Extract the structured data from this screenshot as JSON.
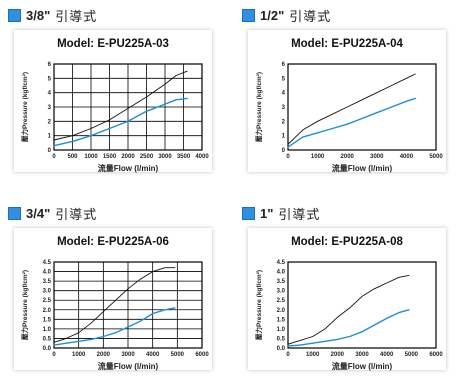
{
  "colors": {
    "accent": "#2f8fe0",
    "grid": "#000000",
    "upper_curve": "#111111",
    "lower_curve": "#1e8fdc"
  },
  "charts": [
    {
      "size_label": "3/8\"",
      "size_suffix": "引導式",
      "model": "Model: E-PU225A-03",
      "ylabel": "壓力Pressure (kgf/cm²)",
      "xlabel": "流量Flow (l/min)",
      "chart_data": {
        "type": "line",
        "xlim": [
          0,
          4000
        ],
        "ylim": [
          0,
          6
        ],
        "x_ticks": [
          0,
          500,
          1000,
          1500,
          2000,
          2500,
          3000,
          3500,
          4000
        ],
        "y_ticks": [
          0,
          1,
          2,
          3,
          4,
          5,
          6
        ],
        "grid": true,
        "series": [
          {
            "x": [
              0,
              500,
              1000,
              1500,
              2000,
              2500,
              3000,
              3300,
              3600
            ],
            "y": [
              0.7,
              1.0,
              1.5,
              2.1,
              2.9,
              3.7,
              4.6,
              5.2,
              5.5
            ]
          },
          {
            "x": [
              0,
              500,
              1000,
              1500,
              2000,
              2500,
              3000,
              3300,
              3600
            ],
            "y": [
              0.3,
              0.6,
              1.0,
              1.5,
              2.0,
              2.7,
              3.2,
              3.5,
              3.6
            ]
          }
        ]
      }
    },
    {
      "size_label": "1/2\"",
      "size_suffix": "引導式",
      "model": "Model: E-PU225A-04",
      "ylabel": "壓力Pressure (kgf/cm²)",
      "xlabel": "流量Flow (l/min)",
      "chart_data": {
        "type": "line",
        "xlim": [
          0,
          5000
        ],
        "ylim": [
          0,
          6
        ],
        "x_ticks": [
          0,
          1000,
          2000,
          3000,
          4000,
          5000
        ],
        "x_tick_labels": [
          "0",
          "1000",
          "2000",
          "3000",
          "4000",
          "5000"
        ],
        "y_ticks": [
          0,
          1,
          2,
          3,
          4,
          5,
          6
        ],
        "grid": false,
        "series": [
          {
            "x": [
              0,
              500,
              1000,
              1500,
              2000,
              2500,
              3000,
              3500,
              4000,
              4300
            ],
            "y": [
              0.4,
              1.4,
              2.0,
              2.5,
              3.0,
              3.5,
              4.0,
              4.5,
              5.0,
              5.3
            ]
          },
          {
            "x": [
              0,
              500,
              1000,
              1500,
              2000,
              2500,
              3000,
              3500,
              4000,
              4300
            ],
            "y": [
              0.2,
              0.9,
              1.2,
              1.5,
              1.8,
              2.2,
              2.6,
              3.0,
              3.4,
              3.6
            ]
          }
        ]
      }
    },
    {
      "size_label": "3/4\"",
      "size_suffix": "引導式",
      "model": "Model: E-PU225A-06",
      "ylabel": "壓力Pressure (kgf/cm²)",
      "xlabel": "流量Flow (l/min)",
      "chart_data": {
        "type": "line",
        "xlim": [
          0,
          6000
        ],
        "ylim": [
          0,
          4.5
        ],
        "x_ticks": [
          0,
          1000,
          2000,
          3000,
          4000,
          5000,
          6000
        ],
        "y_ticks": [
          0,
          0.5,
          1.0,
          1.5,
          2.0,
          2.5,
          3.0,
          3.5,
          4.0,
          4.5
        ],
        "y_tick_labels": [
          "0.0",
          "0.5",
          "1.0",
          "1.5",
          "2.0",
          "2.5",
          "3.0",
          "3.5",
          "4.0",
          "4.5"
        ],
        "grid": true,
        "series": [
          {
            "x": [
              0,
              500,
              1000,
              1500,
              2000,
              2500,
              3000,
              3500,
              4000,
              4500,
              4900
            ],
            "y": [
              0.3,
              0.5,
              0.8,
              1.3,
              1.9,
              2.5,
              3.1,
              3.6,
              4.0,
              4.2,
              4.2
            ]
          },
          {
            "x": [
              0,
              500,
              1000,
              1500,
              2000,
              2500,
              3000,
              3500,
              4000,
              4500,
              4900
            ],
            "y": [
              0.15,
              0.25,
              0.35,
              0.45,
              0.6,
              0.8,
              1.1,
              1.4,
              1.8,
              2.0,
              2.1
            ]
          }
        ]
      }
    },
    {
      "size_label": "1\"",
      "size_suffix": "引導式",
      "model": "Model: E-PU225A-08",
      "ylabel": "壓力Pressure (kgf/cm²)",
      "xlabel": "流量Flow (l/min)",
      "chart_data": {
        "type": "line",
        "xlim": [
          0,
          6000
        ],
        "ylim": [
          0,
          4.5
        ],
        "x_ticks": [
          0,
          1000,
          2000,
          3000,
          4000,
          5000,
          6000
        ],
        "y_ticks": [
          0,
          0.5,
          1.0,
          1.5,
          2.0,
          2.5,
          3.0,
          3.5,
          4.0,
          4.5
        ],
        "y_tick_labels": [
          "0.0",
          "0.5",
          "1.0",
          "1.5",
          "2.0",
          "2.5",
          "3.0",
          "3.5",
          "4.0",
          "4.5"
        ],
        "grid": false,
        "series": [
          {
            "x": [
              0,
              500,
              1000,
              1500,
              2000,
              2500,
              3000,
              3500,
              4000,
              4500,
              4900
            ],
            "y": [
              0.2,
              0.4,
              0.6,
              1.0,
              1.6,
              2.1,
              2.7,
              3.1,
              3.4,
              3.7,
              3.8
            ]
          },
          {
            "x": [
              0,
              500,
              1000,
              1500,
              2000,
              2500,
              3000,
              3500,
              4000,
              4500,
              4900
            ],
            "y": [
              0.1,
              0.15,
              0.25,
              0.35,
              0.45,
              0.6,
              0.85,
              1.2,
              1.55,
              1.85,
              2.0
            ]
          }
        ]
      }
    }
  ]
}
